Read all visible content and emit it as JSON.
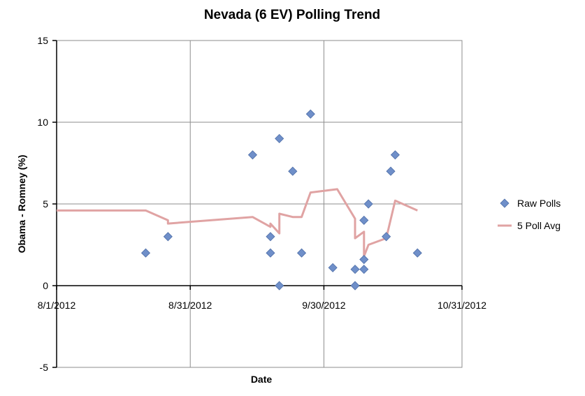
{
  "chart_data": {
    "type": "scatter",
    "title": "Nevada (6 EV) Polling Trend",
    "xlabel": "Date",
    "ylabel": "Obama - Romney (%)",
    "xlim": [
      "2012-08-01",
      "2012-10-31"
    ],
    "ylim": [
      -5,
      15
    ],
    "x_ticks": [
      "8/1/2012",
      "8/31/2012",
      "9/30/2012",
      "10/31/2012"
    ],
    "y_ticks": [
      "-5",
      "0",
      "5",
      "10",
      "15"
    ],
    "grid": true,
    "legend_position": "right",
    "series": [
      {
        "name": "Raw Polls",
        "kind": "scatter",
        "marker": "diamond",
        "color": "#6f8fc9",
        "points": [
          {
            "x": "2012-08-21",
            "y": 2
          },
          {
            "x": "2012-08-26",
            "y": 3
          },
          {
            "x": "2012-09-14",
            "y": 8
          },
          {
            "x": "2012-09-18",
            "y": 3
          },
          {
            "x": "2012-09-18",
            "y": 2
          },
          {
            "x": "2012-09-20",
            "y": 9
          },
          {
            "x": "2012-09-20",
            "y": 0
          },
          {
            "x": "2012-09-23",
            "y": 7
          },
          {
            "x": "2012-09-25",
            "y": 2
          },
          {
            "x": "2012-09-27",
            "y": 10.5
          },
          {
            "x": "2012-10-02",
            "y": 1.1
          },
          {
            "x": "2012-10-07",
            "y": 1
          },
          {
            "x": "2012-10-07",
            "y": 0
          },
          {
            "x": "2012-10-09",
            "y": 4
          },
          {
            "x": "2012-10-09",
            "y": 1.6
          },
          {
            "x": "2012-10-09",
            "y": 1
          },
          {
            "x": "2012-10-10",
            "y": 5
          },
          {
            "x": "2012-10-14",
            "y": 3
          },
          {
            "x": "2012-10-15",
            "y": 7
          },
          {
            "x": "2012-10-16",
            "y": 8
          },
          {
            "x": "2012-10-21",
            "y": 2
          }
        ]
      },
      {
        "name": "5 Poll Avg",
        "kind": "line",
        "color": "#e0a3a3",
        "points": [
          {
            "x": "2012-08-01",
            "y": 4.6
          },
          {
            "x": "2012-08-21",
            "y": 4.6
          },
          {
            "x": "2012-08-26",
            "y": 4.0
          },
          {
            "x": "2012-08-26",
            "y": 3.8
          },
          {
            "x": "2012-09-14",
            "y": 4.2
          },
          {
            "x": "2012-09-18",
            "y": 3.6
          },
          {
            "x": "2012-09-18",
            "y": 3.8
          },
          {
            "x": "2012-09-20",
            "y": 3.2
          },
          {
            "x": "2012-09-20",
            "y": 4.4
          },
          {
            "x": "2012-09-23",
            "y": 4.2
          },
          {
            "x": "2012-09-25",
            "y": 4.2
          },
          {
            "x": "2012-09-27",
            "y": 5.7
          },
          {
            "x": "2012-10-03",
            "y": 5.9
          },
          {
            "x": "2012-10-07",
            "y": 4.1
          },
          {
            "x": "2012-10-07",
            "y": 2.9
          },
          {
            "x": "2012-10-09",
            "y": 3.3
          },
          {
            "x": "2012-10-09",
            "y": 1.8
          },
          {
            "x": "2012-10-10",
            "y": 2.5
          },
          {
            "x": "2012-10-14",
            "y": 2.9
          },
          {
            "x": "2012-10-16",
            "y": 5.2
          },
          {
            "x": "2012-10-21",
            "y": 4.6
          }
        ]
      }
    ]
  }
}
